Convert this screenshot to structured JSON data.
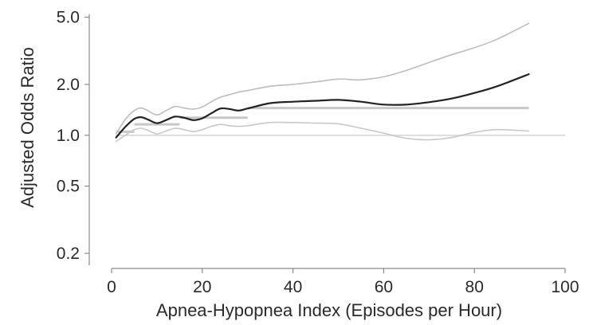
{
  "chart_data": {
    "type": "line",
    "xlabel": "Apnea-Hypopnea Index (Episodes per Hour)",
    "ylabel": "Adjusted Odds Ratio",
    "xlim": [
      0,
      100
    ],
    "ylim": [
      0.17,
      5.2
    ],
    "yscale": "log",
    "x_ticks": [
      "0",
      "20",
      "40",
      "60",
      "80",
      "100"
    ],
    "y_ticks": [
      "0.2",
      "0.5",
      "1.0",
      "2.0",
      "5.0"
    ],
    "grid": false,
    "series": [
      {
        "role": "estimate",
        "color": "#222222",
        "x": [
          1,
          3,
          5,
          6.5,
          8,
          10,
          12,
          14,
          16,
          18,
          20,
          22,
          24,
          26,
          28,
          30,
          35,
          40,
          45,
          50,
          55,
          60,
          65,
          70,
          75,
          80,
          85,
          92
        ],
        "y": [
          0.97,
          1.12,
          1.25,
          1.28,
          1.24,
          1.18,
          1.23,
          1.29,
          1.27,
          1.23,
          1.26,
          1.35,
          1.44,
          1.43,
          1.4,
          1.44,
          1.55,
          1.58,
          1.6,
          1.62,
          1.58,
          1.52,
          1.52,
          1.57,
          1.65,
          1.78,
          1.95,
          2.3
        ]
      },
      {
        "role": "upper-ci",
        "color": "#bdbdbd",
        "x": [
          1,
          3,
          5,
          6.5,
          8,
          10,
          12,
          14,
          16,
          18,
          20,
          22,
          24,
          26,
          28,
          30,
          35,
          40,
          45,
          50,
          55,
          60,
          65,
          70,
          75,
          80,
          85,
          92
        ],
        "y": [
          1.02,
          1.24,
          1.4,
          1.45,
          1.4,
          1.32,
          1.4,
          1.48,
          1.45,
          1.43,
          1.47,
          1.58,
          1.68,
          1.74,
          1.8,
          1.84,
          1.95,
          2.0,
          2.07,
          2.15,
          2.13,
          2.22,
          2.42,
          2.7,
          3.0,
          3.3,
          3.7,
          4.6
        ]
      },
      {
        "role": "lower-ci",
        "color": "#c8c8c8",
        "x": [
          1,
          3,
          5,
          6.5,
          8,
          10,
          12,
          14,
          16,
          18,
          20,
          22,
          24,
          26,
          28,
          30,
          35,
          40,
          45,
          50,
          55,
          60,
          65,
          70,
          75,
          80,
          85,
          92
        ],
        "y": [
          0.92,
          1.0,
          1.08,
          1.1,
          1.07,
          1.02,
          1.06,
          1.1,
          1.08,
          1.05,
          1.08,
          1.13,
          1.16,
          1.14,
          1.13,
          1.14,
          1.19,
          1.19,
          1.18,
          1.17,
          1.1,
          1.03,
          0.96,
          0.94,
          0.97,
          1.04,
          1.08,
          1.06
        ]
      }
    ],
    "steps": [
      {
        "role": "category-step-1",
        "color": "#c8c8c8",
        "x": [
          1,
          5
        ],
        "y": 1.05
      },
      {
        "role": "category-step-2",
        "color": "#c8c8c8",
        "x": [
          5,
          15
        ],
        "y": 1.16
      },
      {
        "role": "category-step-3",
        "color": "#c8c8c8",
        "x": [
          15,
          30
        ],
        "y": 1.27
      },
      {
        "role": "category-step-4",
        "color": "#c8c8c8",
        "x": [
          30,
          92
        ],
        "y": 1.45
      }
    ],
    "reference_line": {
      "y": 1.0,
      "color": "#dddddd"
    }
  }
}
